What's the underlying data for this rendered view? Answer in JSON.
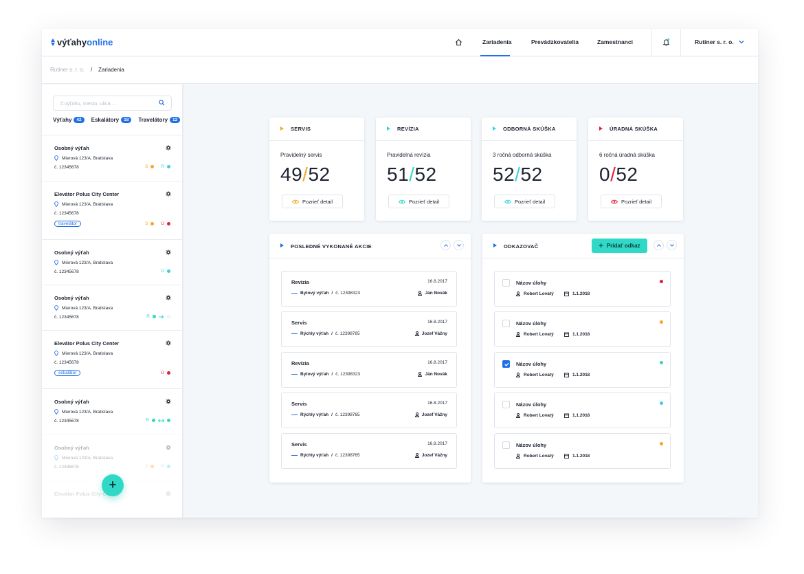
{
  "header": {
    "logo_part1": "výťahy",
    "logo_part2": "online",
    "nav": [
      "Zariadenia",
      "Prevádzkovatelia",
      "Zamestnanci"
    ],
    "company": "Rutiner s. r. o."
  },
  "breadcrumb": {
    "root": "Rutiner s. r. o.",
    "separator": "/",
    "current": "Zariadenia"
  },
  "sidebar": {
    "search_placeholder": "č.výťahu, mesto, ulica ...",
    "filters": [
      {
        "label": "Výťahy",
        "count": "42"
      },
      {
        "label": "Eskalátory",
        "count": "18"
      },
      {
        "label": "Travelátory",
        "count": "12"
      }
    ],
    "devices": [
      {
        "name": "Osobný výťah",
        "address": "Mierová 123/A, Bratislava",
        "number": "č. 12345678",
        "tag": "",
        "status": [
          "S",
          "R"
        ]
      },
      {
        "name": "Elevátor Polus City Center",
        "address": "Mierová 123/A, Bratislava",
        "number": "č. 12345678",
        "tag": "travelátor",
        "status": [
          "S",
          "Ú"
        ]
      },
      {
        "name": "Osobný výťah",
        "address": "Mierová 123/A, Bratislava",
        "number": "č. 12345678",
        "tag": "",
        "status": [
          "O"
        ]
      },
      {
        "name": "Osobný výťah",
        "address": "Mierová 123/A, Bratislava",
        "number": "č. 12345678",
        "tag": "",
        "status": [
          "R"
        ]
      },
      {
        "name": "Elevátor Polus City Center",
        "address": "Mierová 123/A, Bratislava",
        "number": "č. 12345678",
        "tag": "eskalátor",
        "status": [
          "Ú"
        ]
      },
      {
        "name": "Osobný výťah",
        "address": "Mierová 123/A, Bratislava",
        "number": "č. 12345678",
        "tag": "",
        "status": [
          "R"
        ]
      },
      {
        "name": "Osobný výťah",
        "address": "Mierová 123/A, Bratislava",
        "number": "č. 12345678",
        "tag": "",
        "status": [
          "S",
          "R"
        ]
      },
      {
        "name": "Elevátor Polus City Center",
        "address": "",
        "number": "",
        "tag": "",
        "status": []
      }
    ],
    "fab": "+"
  },
  "stats": [
    {
      "title": "SERVIS",
      "sub": "Pravidelný servis",
      "done": "49",
      "total": "52",
      "color": "#f5a623",
      "button": "Pozrieť detail"
    },
    {
      "title": "REVÍZIA",
      "sub": "Pravidelná revízia",
      "done": "51",
      "total": "52",
      "color": "#2fd8c7",
      "button": "Pozrieť detail"
    },
    {
      "title": "ODBORNÁ SKÚŠKA",
      "sub": "3 ročná odborná skúška",
      "done": "52",
      "total": "52",
      "color": "#39d0e0",
      "button": "Pozrieť detail"
    },
    {
      "title": "ÚRADNÁ SKÚŠKA",
      "sub": "6 ročná úradná skúška",
      "done": "0",
      "total": "52",
      "color": "#e2203a",
      "button": "Pozrieť detail"
    }
  ],
  "actions": {
    "title": "POSLEDNÉ VYKONANÉ AKCIE",
    "items": [
      {
        "type": "Revízia",
        "date": "16.8.2017",
        "device": "Bytový výťah",
        "number": "č. 12398323",
        "user": "Ján Novák"
      },
      {
        "type": "Servis",
        "date": "16.8.2017",
        "device": "Rýchly výťah",
        "number": "č. 12398765",
        "user": "Jozef Vážny"
      },
      {
        "type": "Revízia",
        "date": "16.8.2017",
        "device": "Bytový výťah",
        "number": "č. 12398323",
        "user": "Ján Novák"
      },
      {
        "type": "Servis",
        "date": "16.8.2017",
        "device": "Rýchly výťah",
        "number": "č. 12398765",
        "user": "Jozef Vážny"
      },
      {
        "type": "Servis",
        "date": "16.8.2017",
        "device": "Rýchly výťah",
        "number": "č. 12398765",
        "user": "Jozef Vážny"
      }
    ]
  },
  "tasks": {
    "title": "ODKAZOVAČ",
    "add_button": "Pridať odkaz",
    "items": [
      {
        "title": "Názov úlohy",
        "user": "Robert Lovatý",
        "date": "1.1.2018",
        "checked": false,
        "color": "#e2203a"
      },
      {
        "title": "Názov úlohy",
        "user": "Robert Lovatý",
        "date": "1.1.2018",
        "checked": false,
        "color": "#f5a623"
      },
      {
        "title": "Názov úlohy",
        "user": "Robert Lovatý",
        "date": "1.1.2018",
        "checked": true,
        "color": "#2fd8c7"
      },
      {
        "title": "Názov úlohy",
        "user": "Robert Lovatý",
        "date": "1.1.2018",
        "checked": false,
        "color": "#39d0e0"
      },
      {
        "title": "Názov úlohy",
        "user": "Robert Lovatý",
        "date": "1.1.2018",
        "checked": false,
        "color": "#f5a623"
      }
    ]
  },
  "colors": {
    "accent": "#1f6fe5",
    "teal": "#2fd8c7",
    "orange": "#f5a623",
    "red": "#e2203a",
    "cyan": "#39d0e0"
  }
}
